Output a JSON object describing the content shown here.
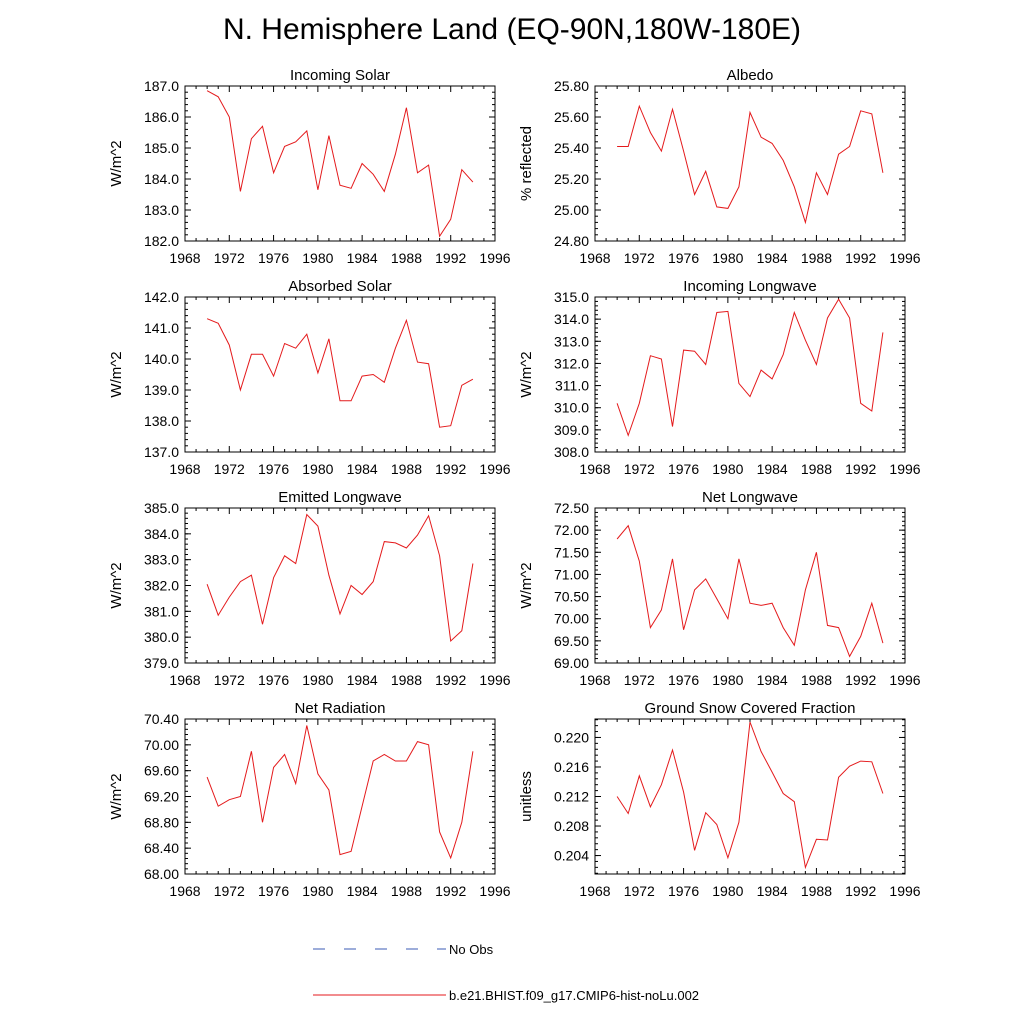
{
  "title": "N. Hemisphere Land (EQ-90N,180W-180E)",
  "colors": {
    "model": "#e41a1c",
    "obs": "#3b5bb5",
    "axis": "#000000"
  },
  "legend": {
    "obs_label": "No Obs",
    "model_label": "b.e21.BHIST.f09_g17.CMIP6-hist-noLu.002"
  },
  "chart_data": [
    {
      "type": "line",
      "title": "Incoming Solar",
      "ylabel": "W/m^2",
      "xlim": [
        1968,
        1996
      ],
      "ylim": [
        182.0,
        187.0
      ],
      "xticks": [
        1968,
        1972,
        1976,
        1980,
        1984,
        1988,
        1992,
        1996
      ],
      "yticks": [
        182.0,
        183.0,
        184.0,
        185.0,
        186.0,
        187.0
      ],
      "ytick_labels": [
        "182.0",
        "183.0",
        "184.0",
        "185.0",
        "186.0",
        "187.0"
      ],
      "grid": false,
      "series": [
        {
          "x": [
            1970,
            1971,
            1972,
            1973,
            1974,
            1975,
            1976,
            1977,
            1978,
            1979,
            1980,
            1981,
            1982,
            1983,
            1984,
            1985,
            1986,
            1987,
            1988,
            1989,
            1990,
            1991,
            1992,
            1993,
            1994
          ],
          "values": [
            186.85,
            186.65,
            186.0,
            183.6,
            185.3,
            185.7,
            184.2,
            185.05,
            185.2,
            185.55,
            183.65,
            185.4,
            183.8,
            183.7,
            184.5,
            184.15,
            183.6,
            184.8,
            186.3,
            184.2,
            184.45,
            182.15,
            182.7,
            184.3,
            183.9
          ]
        }
      ]
    },
    {
      "type": "line",
      "title": "Albedo",
      "ylabel": "% reflected",
      "xlim": [
        1968,
        1996
      ],
      "ylim": [
        24.8,
        25.8
      ],
      "xticks": [
        1968,
        1972,
        1976,
        1980,
        1984,
        1988,
        1992,
        1996
      ],
      "yticks": [
        24.8,
        25.0,
        25.2,
        25.4,
        25.6,
        25.8
      ],
      "ytick_labels": [
        "24.80",
        "25.00",
        "25.20",
        "25.40",
        "25.60",
        "25.80"
      ],
      "grid": false,
      "series": [
        {
          "x": [
            1970,
            1971,
            1972,
            1973,
            1974,
            1975,
            1976,
            1977,
            1978,
            1979,
            1980,
            1981,
            1982,
            1983,
            1984,
            1985,
            1986,
            1987,
            1988,
            1989,
            1990,
            1991,
            1992,
            1993,
            1994
          ],
          "values": [
            25.41,
            25.41,
            25.67,
            25.5,
            25.38,
            25.65,
            25.38,
            25.1,
            25.25,
            25.02,
            25.01,
            25.15,
            25.63,
            25.47,
            25.43,
            25.32,
            25.15,
            24.92,
            25.24,
            25.1,
            25.36,
            25.41,
            25.64,
            25.62,
            25.24
          ]
        }
      ]
    },
    {
      "type": "line",
      "title": "Absorbed Solar",
      "ylabel": "W/m^2",
      "xlim": [
        1968,
        1996
      ],
      "ylim": [
        137.0,
        142.0
      ],
      "xticks": [
        1968,
        1972,
        1976,
        1980,
        1984,
        1988,
        1992,
        1996
      ],
      "yticks": [
        137.0,
        138.0,
        139.0,
        140.0,
        141.0,
        142.0
      ],
      "ytick_labels": [
        "137.0",
        "138.0",
        "139.0",
        "140.0",
        "141.0",
        "142.0"
      ],
      "grid": false,
      "series": [
        {
          "x": [
            1970,
            1971,
            1972,
            1973,
            1974,
            1975,
            1976,
            1977,
            1978,
            1979,
            1980,
            1981,
            1982,
            1983,
            1984,
            1985,
            1986,
            1987,
            1988,
            1989,
            1990,
            1991,
            1992,
            1993,
            1994
          ],
          "values": [
            141.3,
            141.15,
            140.45,
            139.0,
            140.15,
            140.15,
            139.45,
            140.5,
            140.35,
            140.8,
            139.55,
            140.65,
            138.65,
            138.65,
            139.45,
            139.5,
            139.25,
            140.35,
            141.25,
            139.9,
            139.85,
            137.8,
            137.85,
            139.15,
            139.35
          ]
        }
      ]
    },
    {
      "type": "line",
      "title": "Incoming Longwave",
      "ylabel": "W/m^2",
      "xlim": [
        1968,
        1996
      ],
      "ylim": [
        308.0,
        315.0
      ],
      "xticks": [
        1968,
        1972,
        1976,
        1980,
        1984,
        1988,
        1992,
        1996
      ],
      "yticks": [
        308.0,
        309.0,
        310.0,
        311.0,
        312.0,
        313.0,
        314.0,
        315.0
      ],
      "ytick_labels": [
        "308.0",
        "309.0",
        "310.0",
        "311.0",
        "312.0",
        "313.0",
        "314.0",
        "315.0"
      ],
      "grid": false,
      "series": [
        {
          "x": [
            1970,
            1971,
            1972,
            1973,
            1974,
            1975,
            1976,
            1977,
            1978,
            1979,
            1980,
            1981,
            1982,
            1983,
            1984,
            1985,
            1986,
            1987,
            1988,
            1989,
            1990,
            1991,
            1992,
            1993,
            1994
          ],
          "values": [
            310.2,
            308.75,
            310.2,
            312.35,
            312.2,
            309.15,
            312.6,
            312.55,
            311.95,
            314.3,
            314.35,
            311.1,
            310.5,
            311.7,
            311.3,
            312.4,
            314.3,
            313.05,
            311.95,
            314.05,
            314.9,
            314.05,
            310.2,
            309.85,
            313.4
          ]
        }
      ]
    },
    {
      "type": "line",
      "title": "Emitted Longwave",
      "ylabel": "W/m^2",
      "xlim": [
        1968,
        1996
      ],
      "ylim": [
        379.0,
        385.0
      ],
      "xticks": [
        1968,
        1972,
        1976,
        1980,
        1984,
        1988,
        1992,
        1996
      ],
      "yticks": [
        379.0,
        380.0,
        381.0,
        382.0,
        383.0,
        384.0,
        385.0
      ],
      "ytick_labels": [
        "379.0",
        "380.0",
        "381.0",
        "382.0",
        "383.0",
        "384.0",
        "385.0"
      ],
      "grid": false,
      "series": [
        {
          "x": [
            1970,
            1971,
            1972,
            1973,
            1974,
            1975,
            1976,
            1977,
            1978,
            1979,
            1980,
            1981,
            1982,
            1983,
            1984,
            1985,
            1986,
            1987,
            1988,
            1989,
            1990,
            1991,
            1992,
            1993,
            1994
          ],
          "values": [
            382.05,
            380.85,
            381.55,
            382.15,
            382.4,
            380.5,
            382.3,
            383.15,
            382.85,
            384.75,
            384.3,
            382.4,
            380.9,
            382.0,
            381.65,
            382.15,
            383.7,
            383.65,
            383.45,
            383.95,
            384.7,
            383.15,
            379.85,
            380.25,
            382.85
          ]
        }
      ]
    },
    {
      "type": "line",
      "title": "Net Longwave",
      "ylabel": "W/m^2",
      "xlim": [
        1968,
        1996
      ],
      "ylim": [
        69.0,
        72.5
      ],
      "xticks": [
        1968,
        1972,
        1976,
        1980,
        1984,
        1988,
        1992,
        1996
      ],
      "yticks": [
        69.0,
        69.5,
        70.0,
        70.5,
        71.0,
        71.5,
        72.0,
        72.5
      ],
      "ytick_labels": [
        "69.00",
        "69.50",
        "70.00",
        "70.50",
        "71.00",
        "71.50",
        "72.00",
        "72.50"
      ],
      "grid": false,
      "series": [
        {
          "x": [
            1970,
            1971,
            1972,
            1973,
            1974,
            1975,
            1976,
            1977,
            1978,
            1979,
            1980,
            1981,
            1982,
            1983,
            1984,
            1985,
            1986,
            1987,
            1988,
            1989,
            1990,
            1991,
            1992,
            1993,
            1994
          ],
          "values": [
            71.8,
            72.1,
            71.3,
            69.8,
            70.2,
            71.35,
            69.75,
            70.65,
            70.9,
            70.45,
            70.0,
            71.35,
            70.35,
            70.3,
            70.35,
            69.8,
            69.4,
            70.65,
            71.5,
            69.85,
            69.8,
            69.15,
            69.6,
            70.35,
            69.45
          ]
        }
      ]
    },
    {
      "type": "line",
      "title": "Net Radiation",
      "ylabel": "W/m^2",
      "xlim": [
        1968,
        1996
      ],
      "ylim": [
        68.0,
        70.4
      ],
      "xticks": [
        1968,
        1972,
        1976,
        1980,
        1984,
        1988,
        1992,
        1996
      ],
      "yticks": [
        68.0,
        68.4,
        68.8,
        69.2,
        69.6,
        70.0,
        70.4
      ],
      "ytick_labels": [
        "68.00",
        "68.40",
        "68.80",
        "69.20",
        "69.60",
        "70.00",
        "70.40"
      ],
      "grid": false,
      "series": [
        {
          "x": [
            1970,
            1971,
            1972,
            1973,
            1974,
            1975,
            1976,
            1977,
            1978,
            1979,
            1980,
            1981,
            1982,
            1983,
            1984,
            1985,
            1986,
            1987,
            1988,
            1989,
            1990,
            1991,
            1992,
            1993,
            1994
          ],
          "values": [
            69.5,
            69.05,
            69.15,
            69.2,
            69.9,
            68.8,
            69.65,
            69.85,
            69.4,
            70.3,
            69.55,
            69.3,
            68.3,
            68.35,
            69.05,
            69.75,
            69.85,
            69.75,
            69.75,
            70.05,
            70.0,
            68.65,
            68.25,
            68.8,
            69.9
          ]
        }
      ]
    },
    {
      "type": "line",
      "title": "Ground Snow Covered Fraction",
      "ylabel": "unitless",
      "xlim": [
        1968,
        1996
      ],
      "ylim": [
        0.2015,
        0.2225
      ],
      "xticks": [
        1968,
        1972,
        1976,
        1980,
        1984,
        1988,
        1992,
        1996
      ],
      "yticks": [
        0.204,
        0.208,
        0.212,
        0.216,
        0.22
      ],
      "ytick_labels": [
        "0.204",
        "0.208",
        "0.212",
        "0.216",
        "0.220"
      ],
      "grid": false,
      "series": [
        {
          "x": [
            1970,
            1971,
            1972,
            1973,
            1974,
            1975,
            1976,
            1977,
            1978,
            1979,
            1980,
            1981,
            1982,
            1983,
            1984,
            1985,
            1986,
            1987,
            1988,
            1989,
            1990,
            1991,
            1992,
            1993,
            1994
          ],
          "values": [
            0.212,
            0.2097,
            0.2148,
            0.2106,
            0.2136,
            0.2183,
            0.2126,
            0.2047,
            0.2098,
            0.2082,
            0.2037,
            0.2085,
            0.2221,
            0.2181,
            0.2153,
            0.2124,
            0.2113,
            0.2024,
            0.2062,
            0.2061,
            0.2146,
            0.2161,
            0.2168,
            0.2167,
            0.2124
          ]
        }
      ]
    }
  ]
}
